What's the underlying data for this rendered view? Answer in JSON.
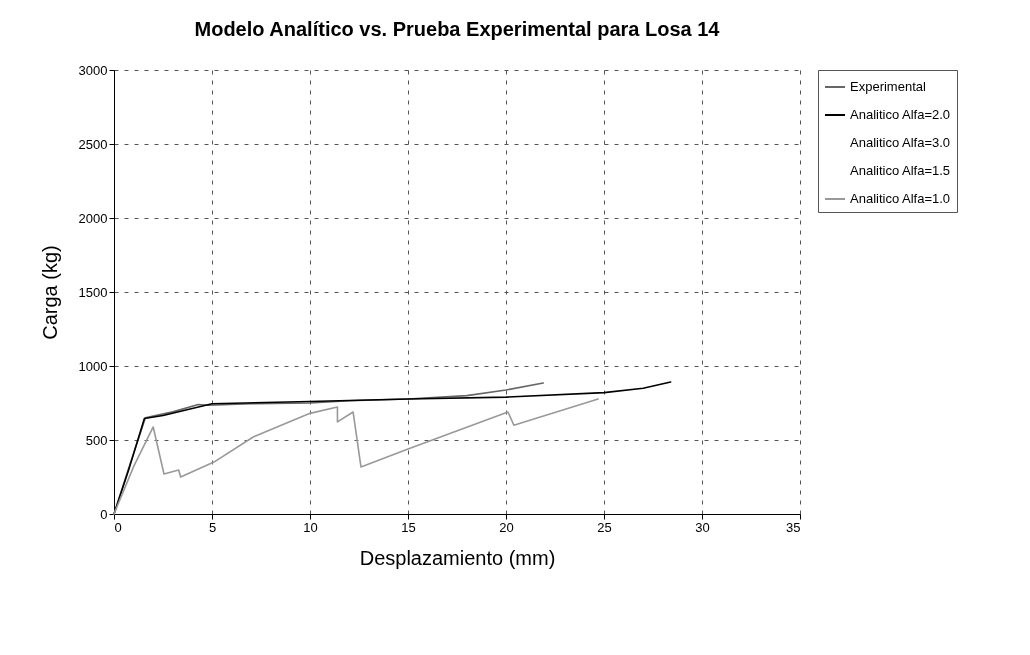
{
  "chart_data": {
    "type": "line",
    "title": "Modelo Analítico vs. Prueba Experimental para Losa 14",
    "xlabel": "Desplazamiento (mm)",
    "ylabel": "Carga (kg)",
    "xlim": [
      0,
      35
    ],
    "xticks": [
      0,
      5,
      10,
      15,
      20,
      25,
      30,
      35
    ],
    "ylim": [
      0,
      3000
    ],
    "yticks": [
      0,
      500,
      1000,
      1500,
      2000,
      2500,
      3000
    ],
    "grid": true,
    "legend": "right",
    "marker": "none",
    "line_style": "solid",
    "series": [
      {
        "name": "Experimental",
        "color": "#666666",
        "x": [
          0,
          0.8,
          1.6,
          3,
          4.3,
          4.8,
          7,
          10,
          12,
          15,
          18,
          20,
          21.9
        ],
        "values": [
          0,
          330,
          650,
          690,
          740,
          735,
          745,
          750,
          765,
          777,
          800,
          838,
          885
        ]
      },
      {
        "name": "Analitico Alfa=2.0",
        "color": "#000000",
        "x": [
          0,
          0.8,
          1.55,
          2.5,
          5,
          10,
          15,
          20,
          25,
          27,
          28.4
        ],
        "values": [
          0,
          320,
          645,
          665,
          745,
          760,
          777,
          790,
          820,
          850,
          892
        ]
      },
      {
        "name": "Analitico Alfa=3.0"
      },
      {
        "name": "Analitico Alfa=1.5"
      },
      {
        "name": "Analitico Alfa=1.0",
        "color": "#999999",
        "x": [
          0,
          1,
          2.0,
          2.55,
          3.3,
          3.4,
          5.1,
          7.1,
          10,
          11.4,
          11.4,
          12.2,
          12.6,
          15,
          20.1,
          20.4,
          24.7
        ],
        "values": [
          0,
          320,
          588,
          270,
          297,
          250,
          351,
          520,
          680,
          723,
          622,
          689,
          318,
          440,
          689,
          600,
          777
        ]
      }
    ]
  }
}
